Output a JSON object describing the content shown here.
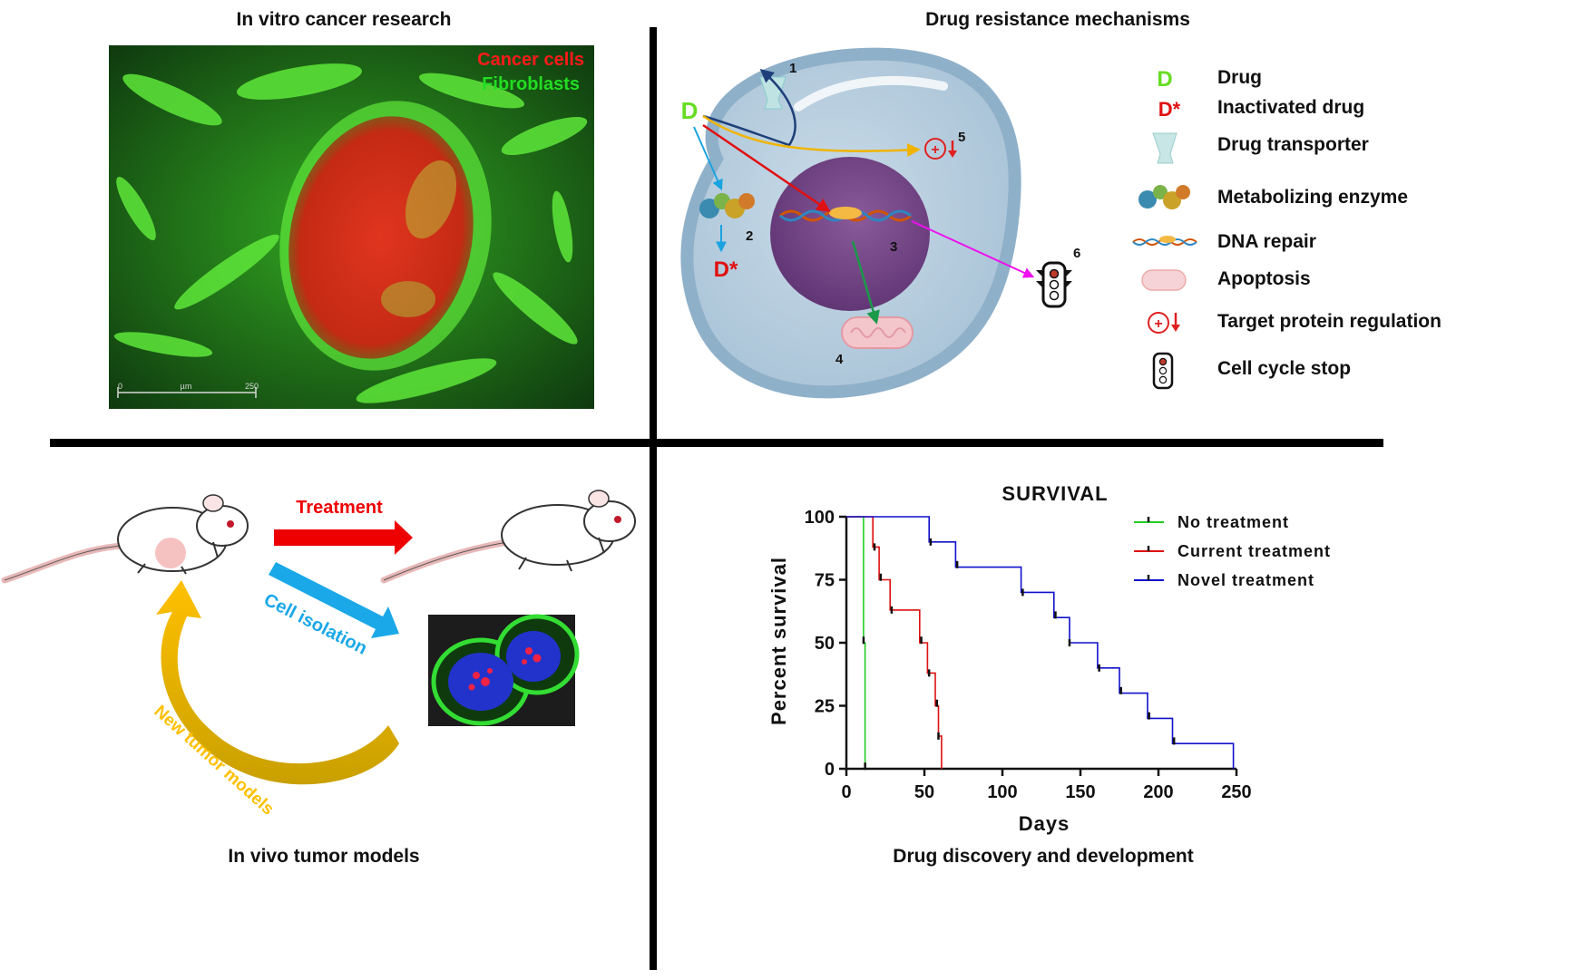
{
  "panels": {
    "top_left_title": "In vitro cancer research",
    "top_right_title": "Drug resistance mechanisms",
    "bottom_left_title": "In vivo tumor models",
    "bottom_right_title": "Drug discovery and development"
  },
  "micrograph": {
    "label_cancer": "Cancer cells",
    "label_fibro": "Fibroblasts",
    "scale_start": "0",
    "scale_unit": "µm",
    "scale_end": "250",
    "colors": {
      "cancer": "#ff1a1a",
      "fibro": "#22dd22"
    }
  },
  "mechanism": {
    "drug_symbol": "D",
    "inactivated_symbol": "D*",
    "numbers": [
      "1",
      "2",
      "3",
      "4",
      "5",
      "6"
    ],
    "legend": [
      {
        "icon": "drug-symbol-icon",
        "label": "Drug"
      },
      {
        "icon": "inactivated-drug-icon",
        "label": "Inactivated drug"
      },
      {
        "icon": "drug-transporter-icon",
        "label": "Drug transporter"
      },
      {
        "icon": "metabolizing-enzyme-icon",
        "label": "Metabolizing enzyme"
      },
      {
        "icon": "dna-repair-icon",
        "label": "DNA repair"
      },
      {
        "icon": "apoptosis-icon",
        "label": "Apoptosis"
      },
      {
        "icon": "target-protein-icon",
        "label": "Target protein regulation"
      },
      {
        "icon": "traffic-light-icon",
        "label": "Cell cycle stop"
      }
    ]
  },
  "invivo": {
    "treatment_label": "Treatment",
    "isolation_label": "Cell isolation",
    "models_label": "New tumor models"
  },
  "chart_data": {
    "type": "line",
    "subtype": "kaplan-meier",
    "title": "SURVIVAL",
    "xlabel": "Days",
    "ylabel": "Percent survival",
    "xlim": [
      0,
      250
    ],
    "ylim": [
      0,
      100
    ],
    "xticks": [
      0,
      50,
      100,
      150,
      200,
      250
    ],
    "yticks": [
      0,
      25,
      50,
      75,
      100
    ],
    "series": [
      {
        "name": "No treatment",
        "color": "#22cc22",
        "steps": [
          [
            0,
            100
          ],
          [
            11,
            100
          ],
          [
            11,
            50
          ],
          [
            12,
            50
          ],
          [
            12,
            0
          ]
        ],
        "censor": [
          [
            11,
            51
          ],
          [
            12,
            1
          ]
        ]
      },
      {
        "name": "Current treatment",
        "color": "#dd1111",
        "steps": [
          [
            0,
            100
          ],
          [
            17,
            100
          ],
          [
            17,
            88
          ],
          [
            21,
            88
          ],
          [
            21,
            75
          ],
          [
            28,
            75
          ],
          [
            28,
            63
          ],
          [
            47,
            63
          ],
          [
            47,
            50
          ],
          [
            52,
            50
          ],
          [
            52,
            38
          ],
          [
            57,
            38
          ],
          [
            57,
            25
          ],
          [
            59,
            25
          ],
          [
            59,
            13
          ],
          [
            61,
            13
          ],
          [
            61,
            0
          ]
        ],
        "censor": [
          [
            18,
            88
          ],
          [
            22,
            76
          ],
          [
            29,
            63
          ],
          [
            48,
            51
          ],
          [
            53,
            38
          ],
          [
            58,
            26
          ],
          [
            59,
            13
          ]
        ]
      },
      {
        "name": "Novel treatment",
        "color": "#1111cc",
        "steps": [
          [
            0,
            100
          ],
          [
            53,
            100
          ],
          [
            53,
            90
          ],
          [
            70,
            90
          ],
          [
            70,
            80
          ],
          [
            112,
            80
          ],
          [
            112,
            70
          ],
          [
            133,
            70
          ],
          [
            133,
            60
          ],
          [
            143,
            60
          ],
          [
            143,
            50
          ],
          [
            161,
            50
          ],
          [
            161,
            40
          ],
          [
            175,
            40
          ],
          [
            175,
            30
          ],
          [
            193,
            30
          ],
          [
            193,
            20
          ],
          [
            209,
            20
          ],
          [
            209,
            10
          ],
          [
            248,
            10
          ],
          [
            248,
            0
          ]
        ],
        "censor": [
          [
            54,
            90
          ],
          [
            71,
            81
          ],
          [
            113,
            70
          ],
          [
            134,
            61
          ],
          [
            143,
            50
          ],
          [
            162,
            40
          ],
          [
            176,
            31
          ],
          [
            194,
            21
          ],
          [
            210,
            11
          ]
        ]
      }
    ]
  }
}
